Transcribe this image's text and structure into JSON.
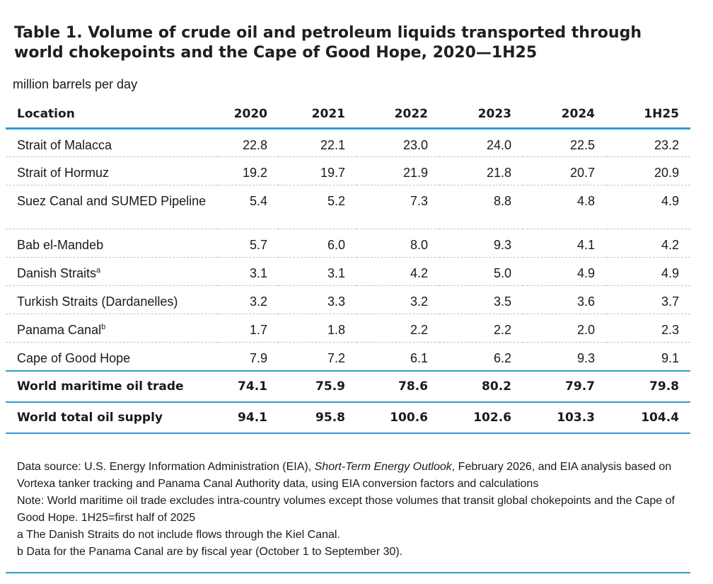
{
  "title": "Table 1. Volume of crude oil and petroleum liquids transported through world chokepoints and the Cape of Good Hope, 2020—1H25",
  "units": "million barrels per day",
  "table": {
    "headers": [
      "Location",
      "2020",
      "2021",
      "2022",
      "2023",
      "2024",
      "1H25"
    ],
    "rows": [
      {
        "location": "Strait of Malacca",
        "sup": "",
        "values": [
          "22.8",
          "22.1",
          "23.0",
          "24.0",
          "22.5",
          "23.2"
        ]
      },
      {
        "location": "Strait of Hormuz",
        "sup": "",
        "values": [
          "19.2",
          "19.7",
          "21.9",
          "21.8",
          "20.7",
          "20.9"
        ]
      },
      {
        "location": "Suez Canal and SUMED Pipeline",
        "sup": "",
        "values": [
          "5.4",
          "5.2",
          "7.3",
          "8.8",
          "4.8",
          "4.9"
        ]
      },
      {
        "location": "Bab el-Mandeb",
        "sup": "",
        "values": [
          "5.7",
          "6.0",
          "8.0",
          "9.3",
          "4.1",
          "4.2"
        ]
      },
      {
        "location": "Danish Straits",
        "sup": "a",
        "values": [
          "3.1",
          "3.1",
          "4.2",
          "5.0",
          "4.9",
          "4.9"
        ]
      },
      {
        "location": "Turkish Straits (Dardanelles)",
        "sup": "",
        "values": [
          "3.2",
          "3.3",
          "3.2",
          "3.5",
          "3.6",
          "3.7"
        ]
      },
      {
        "location": "Panama Canal",
        "sup": "b",
        "values": [
          "1.7",
          "1.8",
          "2.2",
          "2.2",
          "2.0",
          "2.3"
        ]
      },
      {
        "location": "Cape of Good Hope",
        "sup": "",
        "values": [
          "7.9",
          "7.2",
          "6.1",
          "6.2",
          "9.3",
          "9.1"
        ]
      }
    ],
    "totals": [
      {
        "location": "World maritime oil trade",
        "values": [
          "74.1",
          "75.9",
          "78.6",
          "80.2",
          "79.7",
          "79.8"
        ]
      },
      {
        "location": "World total oil supply",
        "values": [
          "94.1",
          "95.8",
          "100.6",
          "102.6",
          "103.3",
          "104.4"
        ]
      }
    ]
  },
  "notes": {
    "source_prefix": "Data source: U.S. Energy Information Administration (EIA), ",
    "source_italic": "Short-Term Energy Outlook",
    "source_suffix": ", February 2026, and EIA analysis based on Vortexa tanker tracking and Panama Canal Authority data, using EIA conversion factors and calculations",
    "note": "Note: World maritime oil trade excludes intra-country volumes except those volumes that transit global chokepoints and the Cape of Good Hope. 1H25=first half of 2025",
    "footnote_a": "a The Danish Straits do not include flows through the Kiel Canal.",
    "footnote_b": "b Data for the Panama Canal are by fiscal year (October 1 to September 30)."
  }
}
